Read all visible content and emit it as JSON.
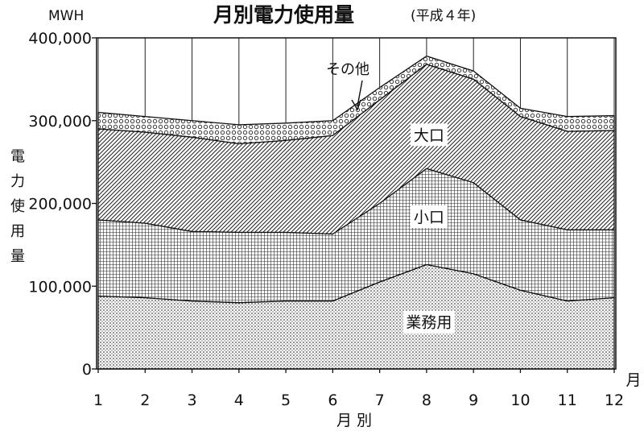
{
  "chart_data": {
    "type": "area",
    "title": "月別電力使用量",
    "subtitle": "(平成４年)",
    "unit_label": "MWH",
    "ylabel": "電力使用量",
    "xlabel": "月 別",
    "x_unit_label": "月",
    "categories": [
      "1",
      "2",
      "3",
      "4",
      "5",
      "6",
      "7",
      "8",
      "9",
      "10",
      "11",
      "12"
    ],
    "y_ticks": [
      "0",
      "100,000",
      "200,000",
      "300,000",
      "400,000"
    ],
    "y_tick_values": [
      0,
      100000,
      200000,
      300000,
      400000
    ],
    "ylim": [
      0,
      400000
    ],
    "stacking": "cumulative",
    "series": [
      {
        "name": "業務用",
        "pattern": "dots",
        "values": [
          88000,
          86000,
          82000,
          80000,
          82000,
          82000,
          105000,
          126000,
          115000,
          95000,
          82000,
          86000
        ]
      },
      {
        "name": "小口",
        "pattern": "grid",
        "values": [
          180000,
          176000,
          166000,
          165000,
          165000,
          163000,
          200000,
          242000,
          225000,
          180000,
          168000,
          168000
        ]
      },
      {
        "name": "大口",
        "pattern": "hatch",
        "values": [
          290000,
          286000,
          280000,
          272000,
          276000,
          282000,
          325000,
          368000,
          350000,
          305000,
          287000,
          288000
        ]
      },
      {
        "name": "その他",
        "pattern": "crosshatch",
        "values": [
          310000,
          305000,
          300000,
          295000,
          297000,
          300000,
          340000,
          378000,
          360000,
          315000,
          305000,
          306000
        ]
      }
    ],
    "annotations": [
      "その他"
    ],
    "grid": true,
    "legend": "inline labels"
  }
}
